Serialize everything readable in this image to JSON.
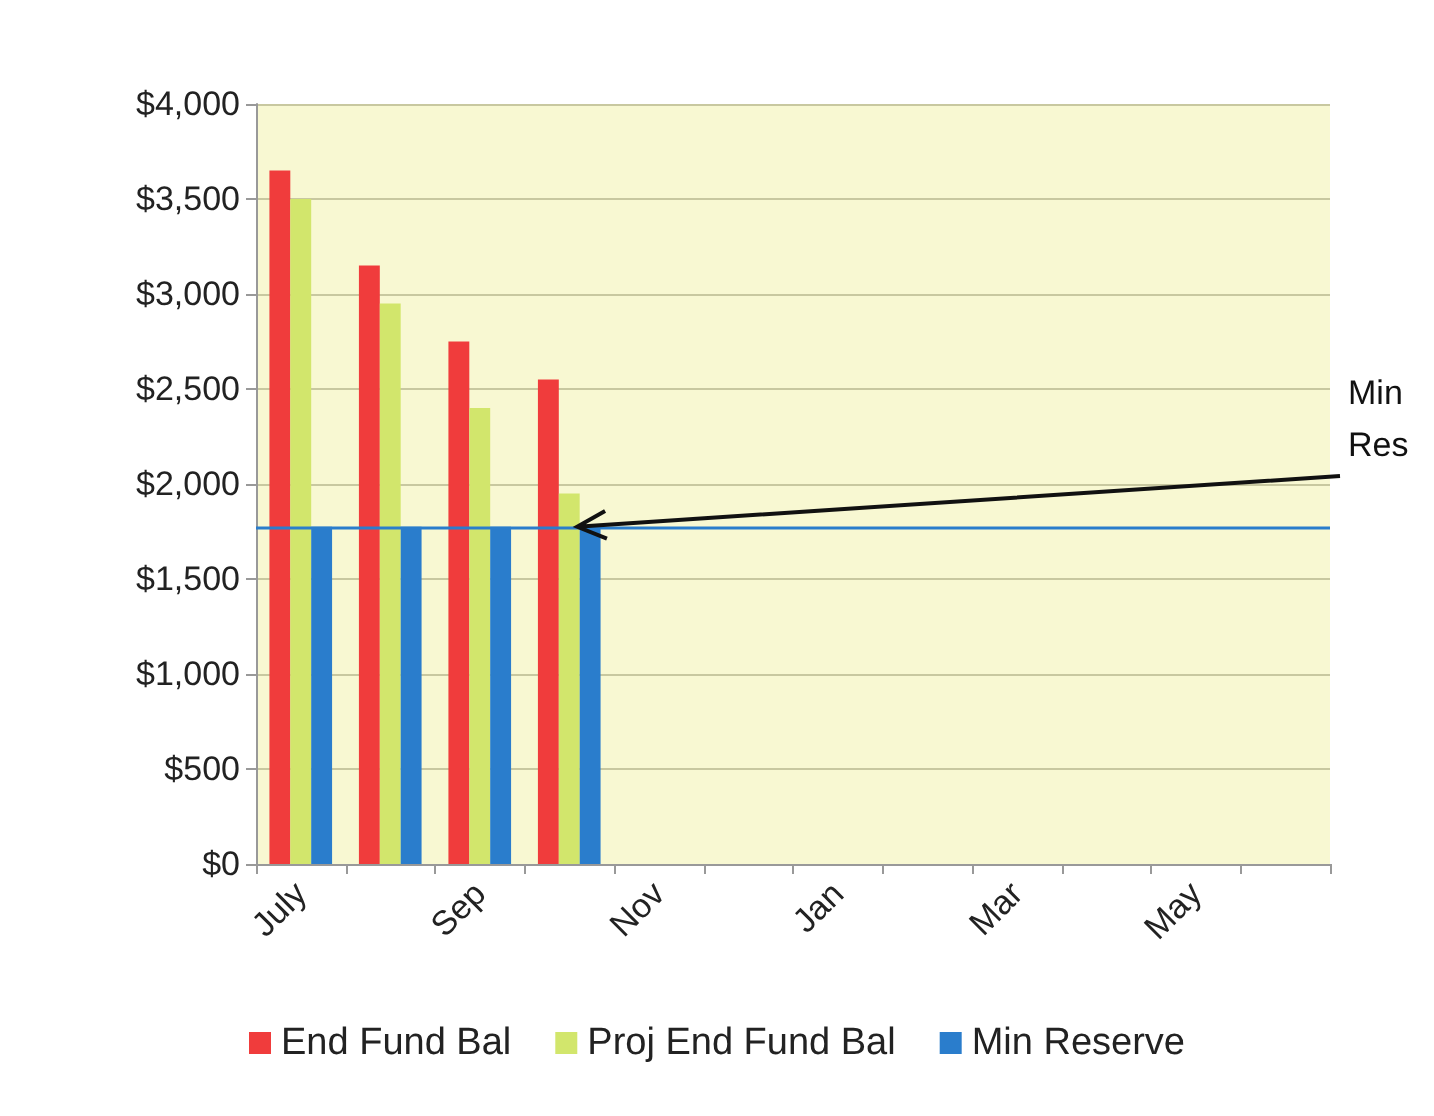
{
  "chart_data": {
    "type": "bar",
    "categories": [
      "July",
      null,
      "Sep",
      null,
      "Nov",
      null,
      "Jan",
      null,
      "Mar",
      null,
      "May",
      null
    ],
    "series": [
      {
        "name": "End Fund Bal",
        "color": "#f03c3c",
        "values": [
          3650,
          3150,
          2750,
          2550,
          null,
          null,
          null,
          null,
          null,
          null,
          null,
          null
        ]
      },
      {
        "name": "Proj End Fund Bal",
        "color": "#d2e66c",
        "values": [
          3500,
          2950,
          2400,
          1950,
          null,
          null,
          null,
          null,
          null,
          null,
          null,
          null
        ]
      },
      {
        "name": "Min Reserve",
        "color": "#2a7dcc",
        "values": [
          1775,
          1775,
          1775,
          1775,
          null,
          null,
          null,
          null,
          null,
          null,
          null,
          null
        ]
      }
    ],
    "ylim": [
      0,
      4000
    ],
    "yticks": [
      {
        "value": 0,
        "label": "$0"
      },
      {
        "value": 500,
        "label": "$500"
      },
      {
        "value": 1000,
        "label": "$1,000"
      },
      {
        "value": 1500,
        "label": "$1,500"
      },
      {
        "value": 2000,
        "label": "$2,000"
      },
      {
        "value": 2500,
        "label": "$2,500"
      },
      {
        "value": 3000,
        "label": "$3,000"
      },
      {
        "value": 3500,
        "label": "$3,500"
      },
      {
        "value": 4000,
        "label": "$4,000"
      }
    ],
    "ref_lines": [
      {
        "axis": "y",
        "value": 1775,
        "label": "Min Res",
        "color": "#2a7dcc"
      }
    ],
    "grid": "y",
    "legend": "bottom"
  }
}
